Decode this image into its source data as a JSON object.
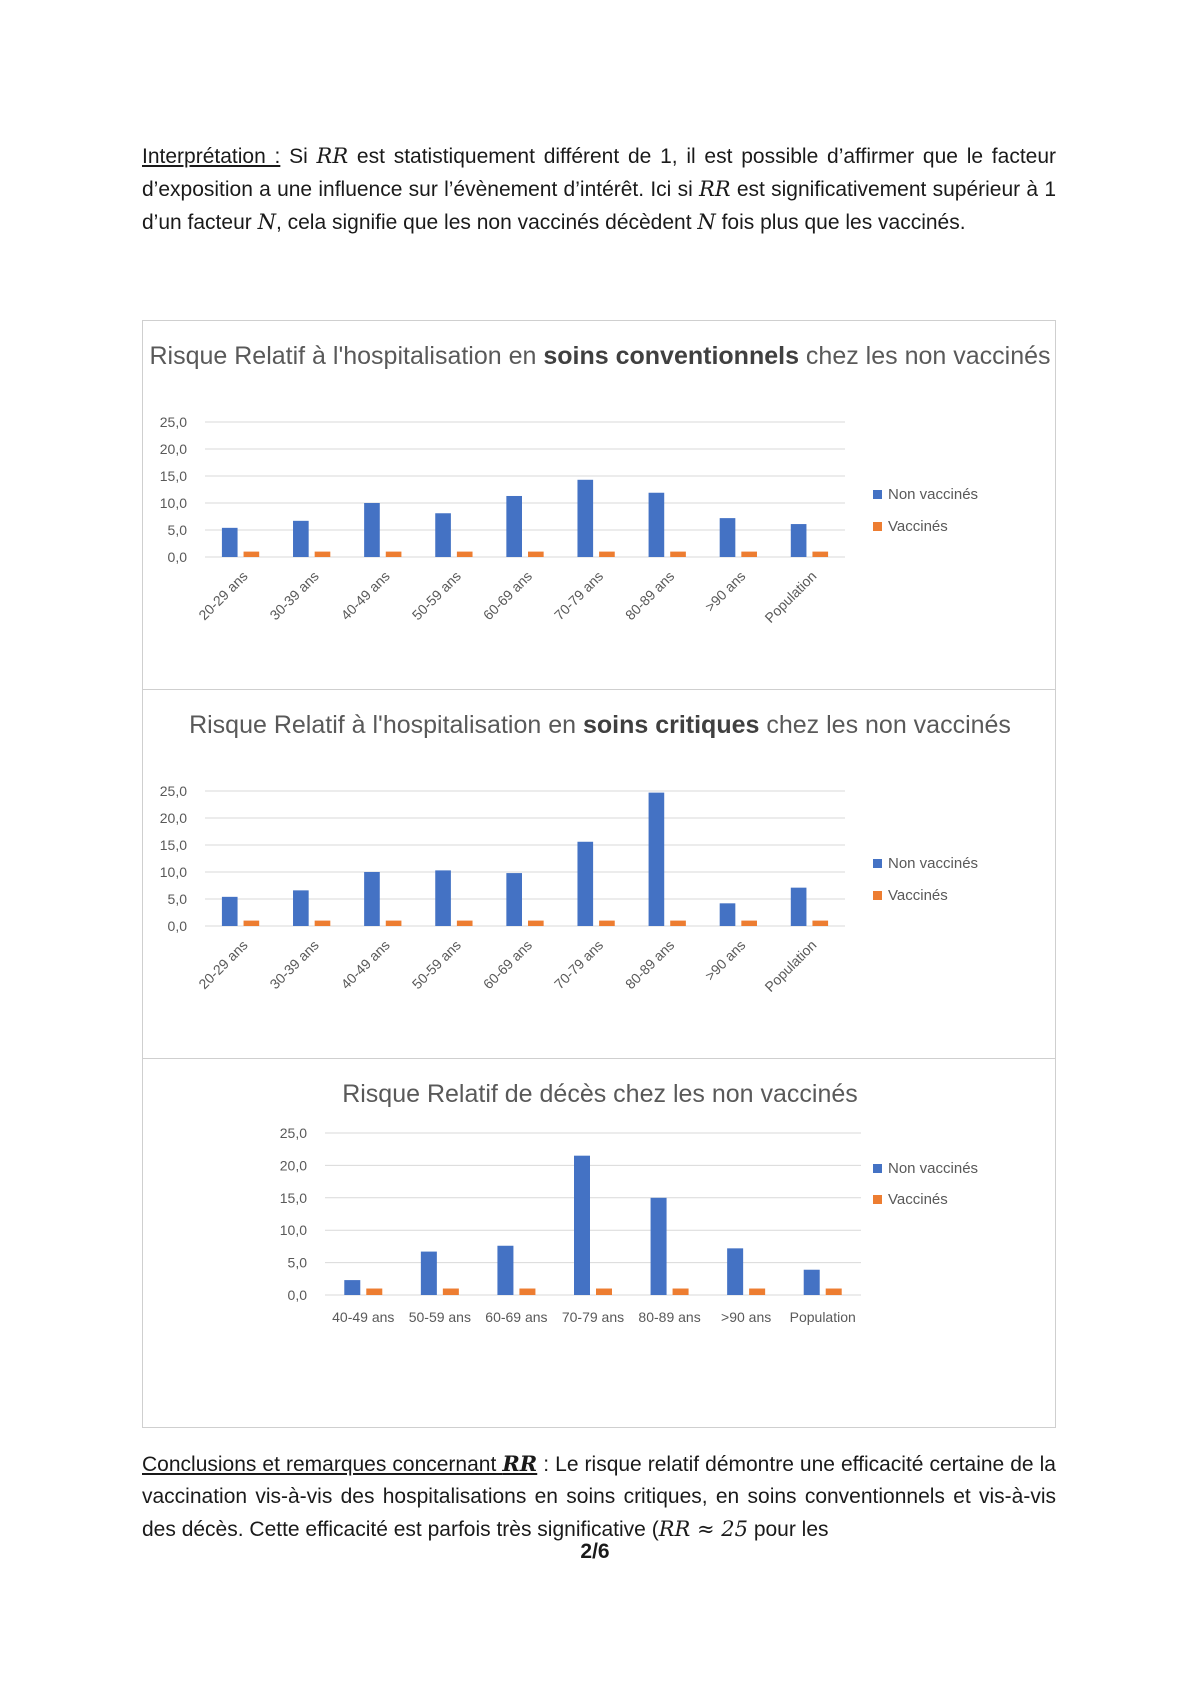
{
  "paragraph1": {
    "label": "Interprétation :",
    "t1": " Si ",
    "m1": "RR",
    "t2": " est statistiquement différent de 1, il est possible d’affirmer que le facteur d’exposition a une influence sur l’évènement d’intérêt. Ici si ",
    "m2": "RR",
    "t3": " est significativement supérieur à 1 d’un facteur ",
    "m3": "N",
    "t4": ", cela signifie que les non vaccinés décèdent ",
    "m4": "N",
    "t5": " fois plus que les vaccinés."
  },
  "paragraph2": {
    "label": "Conclusions et remarques concernant ",
    "m1": "RR",
    "t1": " : Le risque relatif démontre une efficacité certaine de la vaccination vis-à-vis des hospitalisations en soins critiques, en soins conventionnels et vis-à-vis des décès. Cette efficacité est parfois très significative (",
    "m2": "RR ≈ 25",
    "t2": " pour les"
  },
  "page_number": "2/6",
  "colors": {
    "non_vaccines": "#4472C4",
    "vaccines": "#ED7D31",
    "grid": "#d9d9d9",
    "text": "#595959"
  },
  "chart_data": [
    {
      "type": "bar",
      "title_parts": [
        "Risque Relatif à l'hospitalisation en ",
        "soins conventionnels",
        " chez les non vaccinés"
      ],
      "categories": [
        "20-29 ans",
        "30-39 ans",
        "40-49 ans",
        "50-59 ans",
        "60-69 ans",
        "70-79 ans",
        "80-89 ans",
        ">90 ans",
        "Population"
      ],
      "series": [
        {
          "name": "Non vaccinés",
          "values": [
            5.4,
            6.7,
            10.0,
            8.1,
            11.3,
            14.3,
            11.9,
            7.2,
            6.1
          ]
        },
        {
          "name": "Vaccinés",
          "values": [
            1.0,
            1.0,
            1.0,
            1.0,
            1.0,
            1.0,
            1.0,
            1.0,
            1.0
          ]
        }
      ],
      "yticks": [
        "0,0",
        "5,0",
        "10,0",
        "15,0",
        "20,0",
        "25,0"
      ],
      "ylim": [
        0,
        25
      ],
      "legend": "right",
      "xlabel_rotation": "-45",
      "grid": true
    },
    {
      "type": "bar",
      "title_parts": [
        "Risque Relatif à l'hospitalisation en ",
        "soins critiques",
        " chez les non vaccinés"
      ],
      "categories": [
        "20-29 ans",
        "30-39 ans",
        "40-49 ans",
        "50-59 ans",
        "60-69 ans",
        "70-79 ans",
        "80-89 ans",
        ">90 ans",
        "Population"
      ],
      "series": [
        {
          "name": "Non vaccinés",
          "values": [
            5.4,
            6.6,
            10.0,
            10.3,
            9.8,
            15.6,
            24.7,
            4.2,
            7.1
          ]
        },
        {
          "name": "Vaccinés",
          "values": [
            1.0,
            1.0,
            1.0,
            1.0,
            1.0,
            1.0,
            1.0,
            1.0,
            1.0
          ]
        }
      ],
      "yticks": [
        "0,0",
        "5,0",
        "10,0",
        "15,0",
        "20,0",
        "25,0"
      ],
      "ylim": [
        0,
        25
      ],
      "legend": "right",
      "xlabel_rotation": "-45",
      "grid": true
    },
    {
      "type": "bar",
      "title_parts": [
        "Risque Relatif de décès chez les non vaccinés",
        "",
        ""
      ],
      "categories": [
        "40-49 ans",
        "50-59 ans",
        "60-69 ans",
        "70-79 ans",
        "80-89 ans",
        ">90 ans",
        "Population"
      ],
      "series": [
        {
          "name": "Non vaccinés",
          "values": [
            2.3,
            6.7,
            7.6,
            21.5,
            15.0,
            7.2,
            3.9
          ]
        },
        {
          "name": "Vaccinés",
          "values": [
            1.0,
            1.0,
            1.0,
            1.0,
            1.0,
            1.0,
            1.0
          ]
        }
      ],
      "yticks": [
        "0,0",
        "5,0",
        "10,0",
        "15,0",
        "20,0",
        "25,0"
      ],
      "ylim": [
        0,
        25
      ],
      "legend": "right",
      "xlabel_rotation": "0",
      "grid": true
    }
  ]
}
